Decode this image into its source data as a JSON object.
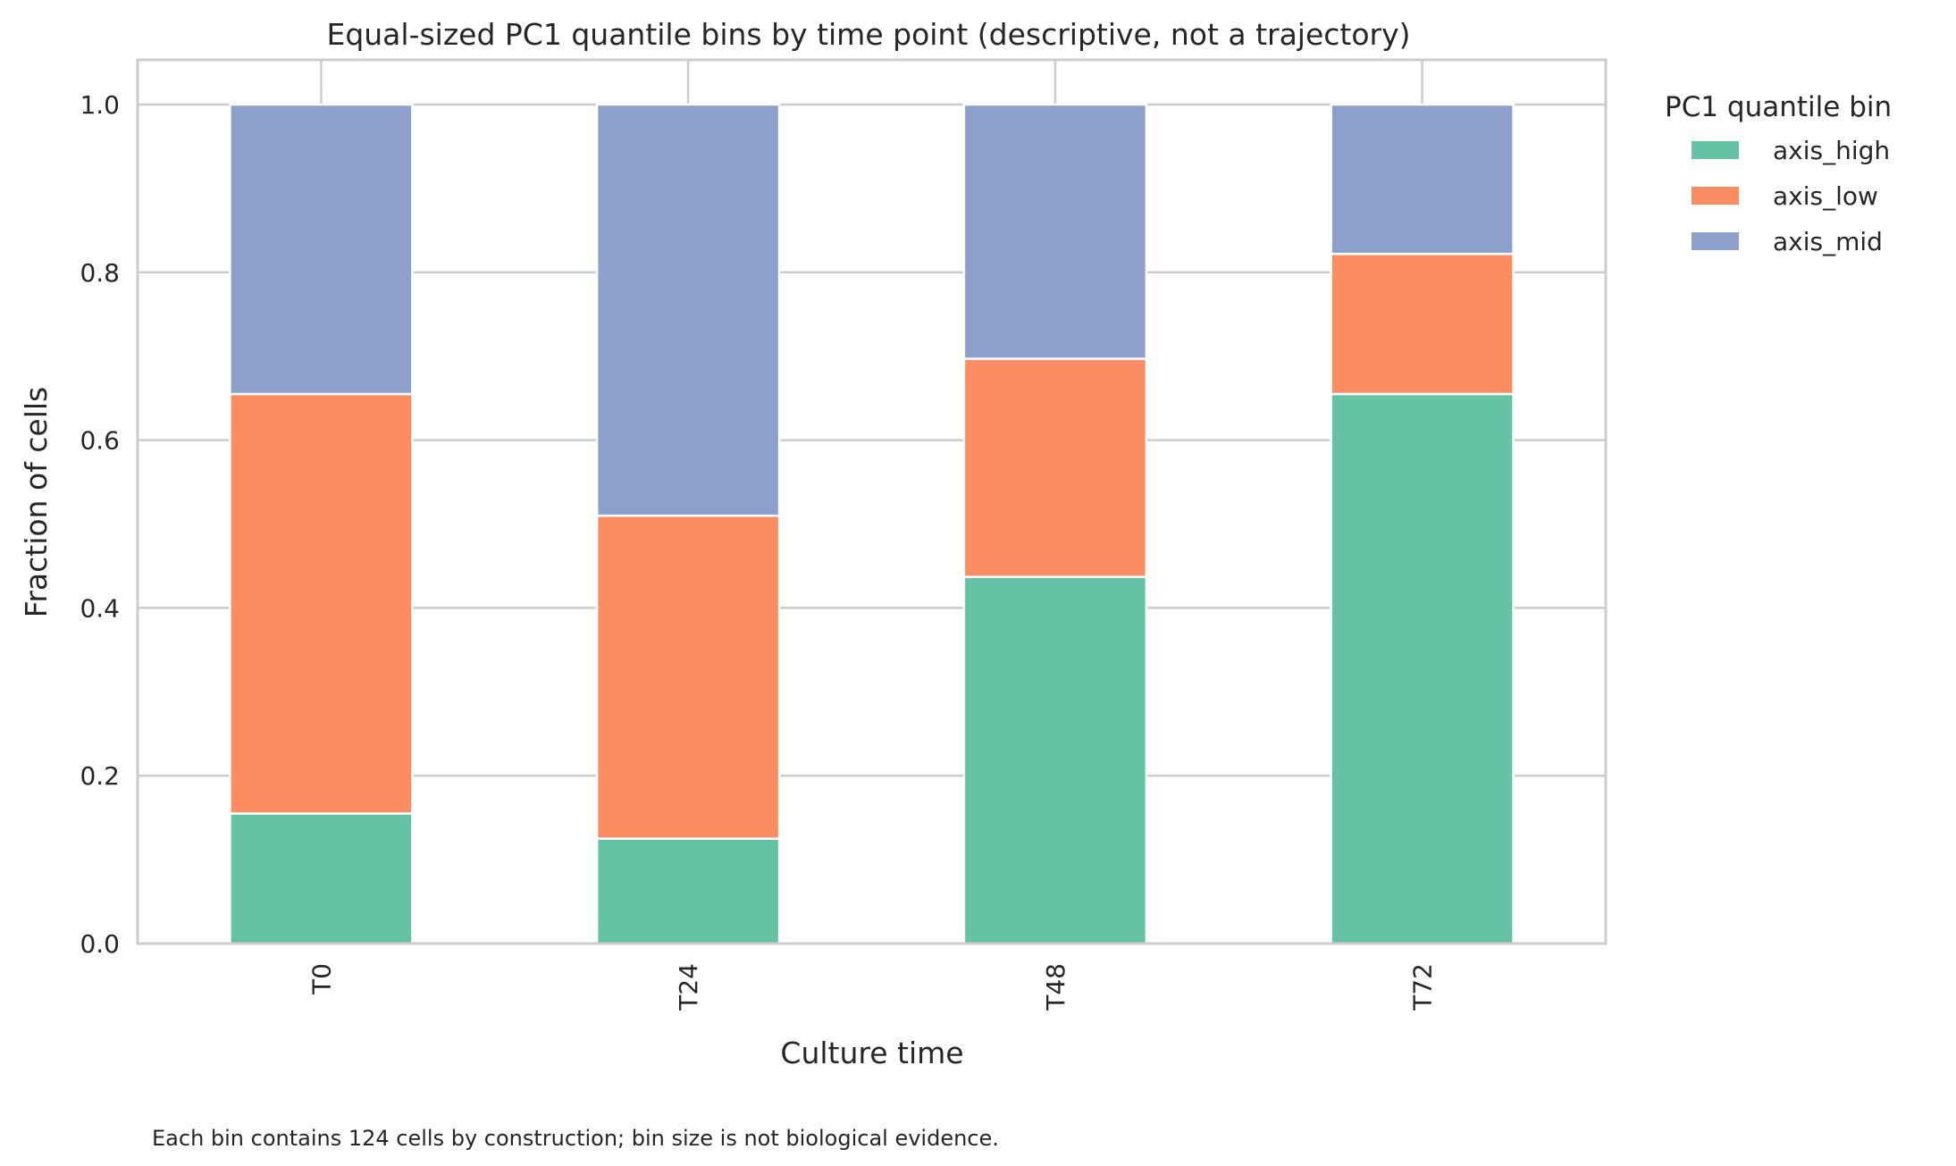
{
  "chart_data": {
    "type": "bar",
    "stacked": true,
    "title": "Equal-sized PC1 quantile bins by time point (descriptive, not a trajectory)",
    "xlabel": "Culture time",
    "ylabel": "Fraction of cells",
    "categories": [
      "T0",
      "T24",
      "T48",
      "T72"
    ],
    "ylim": [
      0,
      1.05
    ],
    "yticks": [
      "0.0",
      "0.2",
      "0.4",
      "0.6",
      "0.8",
      "1.0"
    ],
    "grid": true,
    "legend": {
      "title": "PC1 quantile bin",
      "placement": "outside-right"
    },
    "series": [
      {
        "name": "axis_high",
        "color": "#66c2a5",
        "values": [
          0.155,
          0.125,
          0.437,
          0.655
        ]
      },
      {
        "name": "axis_low",
        "color": "#fc8d62",
        "values": [
          0.5,
          0.385,
          0.26,
          0.167
        ]
      },
      {
        "name": "axis_mid",
        "color": "#8da0cb",
        "values": [
          0.345,
          0.49,
          0.303,
          0.178
        ]
      }
    ],
    "footnote": "Each bin contains 124 cells by construction; bin size is not biological evidence."
  }
}
